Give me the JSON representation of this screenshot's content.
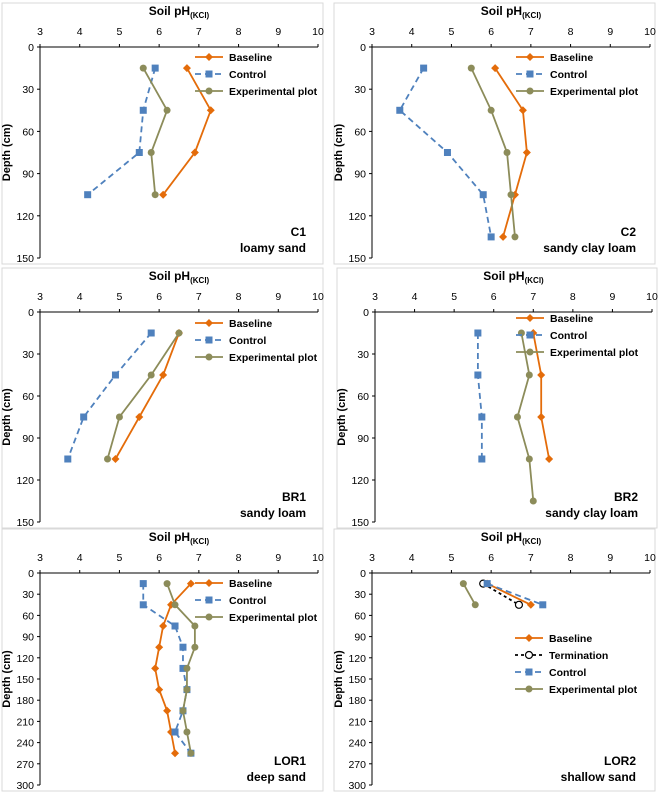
{
  "legend_labels": {
    "baseline": "Baseline",
    "termination": "Termination",
    "control": "Control",
    "experimental": "Experimental plot"
  },
  "colors": {
    "baseline": "#E46C0A",
    "control": "#4F81BD",
    "experimental": "#8C8C5A",
    "termination": "#000000"
  },
  "chart_data": [
    {
      "type": "line",
      "id": "C1",
      "title": "Soil pH(KCl)",
      "xlabel": "Soil pH",
      "xlabel_sub": "(KCl)",
      "ylabel": "Depth (cm)",
      "panel_label": "C1",
      "soil_type": "loamy sand",
      "xlim": [
        3,
        10
      ],
      "ylim": [
        0,
        150
      ],
      "xticks": [
        3,
        4,
        5,
        6,
        7,
        8,
        9,
        10
      ],
      "yticks": [
        0,
        30,
        60,
        90,
        120,
        150
      ],
      "series": [
        {
          "name": "Baseline",
          "key": "baseline",
          "depth": [
            15,
            45,
            75,
            105
          ],
          "values": [
            6.7,
            7.3,
            6.9,
            6.1
          ]
        },
        {
          "name": "Control",
          "key": "control",
          "depth": [
            15,
            45,
            75,
            105
          ],
          "values": [
            5.9,
            5.6,
            5.5,
            4.2
          ]
        },
        {
          "name": "Experimental plot",
          "key": "experimental",
          "depth": [
            15,
            45,
            75,
            105
          ],
          "values": [
            5.6,
            6.2,
            5.8,
            5.9
          ]
        }
      ]
    },
    {
      "type": "line",
      "id": "C2",
      "title": "Soil pH(KCl)",
      "xlabel": "Soil pH",
      "xlabel_sub": "(KCl)",
      "ylabel": "Depth (cm)",
      "panel_label": "C2",
      "soil_type": "sandy clay loam",
      "xlim": [
        3,
        10
      ],
      "ylim": [
        0,
        150
      ],
      "xticks": [
        3,
        4,
        5,
        6,
        7,
        8,
        9,
        10
      ],
      "yticks": [
        0,
        30,
        60,
        90,
        120,
        150
      ],
      "series": [
        {
          "name": "Baseline",
          "key": "baseline",
          "depth": [
            15,
            45,
            75,
            105,
            135
          ],
          "values": [
            6.1,
            6.8,
            6.9,
            6.6,
            6.3
          ]
        },
        {
          "name": "Control",
          "key": "control",
          "depth": [
            15,
            45,
            75,
            105,
            135
          ],
          "values": [
            4.3,
            3.7,
            4.9,
            5.8,
            6.0
          ]
        },
        {
          "name": "Experimental plot",
          "key": "experimental",
          "depth": [
            15,
            45,
            75,
            105,
            135
          ],
          "values": [
            5.5,
            6.0,
            6.4,
            6.5,
            6.6
          ]
        }
      ]
    },
    {
      "type": "line",
      "id": "BR1",
      "title": "Soil pH(KCl)",
      "xlabel": "Soil pH",
      "xlabel_sub": "(KCl)",
      "ylabel": "Depth (cm)",
      "panel_label": "BR1",
      "soil_type": "sandy loam",
      "xlim": [
        3,
        10
      ],
      "ylim": [
        0,
        150
      ],
      "xticks": [
        3,
        4,
        5,
        6,
        7,
        8,
        9,
        10
      ],
      "yticks": [
        0,
        30,
        60,
        90,
        120,
        150
      ],
      "series": [
        {
          "name": "Baseline",
          "key": "baseline",
          "depth": [
            15,
            45,
            75,
            105
          ],
          "values": [
            6.5,
            6.1,
            5.5,
            4.9
          ]
        },
        {
          "name": "Control",
          "key": "control",
          "depth": [
            15,
            45,
            75,
            105
          ],
          "values": [
            5.8,
            4.9,
            4.1,
            3.7
          ]
        },
        {
          "name": "Experimental plot",
          "key": "experimental",
          "depth": [
            15,
            45,
            75,
            105
          ],
          "values": [
            6.5,
            5.8,
            5.0,
            4.7
          ]
        }
      ]
    },
    {
      "type": "line",
      "id": "BR2",
      "title": "Soil pH(KCl)",
      "xlabel": "Soil pH",
      "xlabel_sub": "(KCl)",
      "ylabel": "Depth (cm)",
      "panel_label": "BR2",
      "soil_type": "sandy clay loam",
      "xlim": [
        3,
        10
      ],
      "ylim": [
        0,
        150
      ],
      "xticks": [
        3,
        4,
        5,
        6,
        7,
        8,
        9,
        10
      ],
      "yticks": [
        0,
        30,
        60,
        90,
        120,
        150
      ],
      "series": [
        {
          "name": "Baseline",
          "key": "baseline",
          "depth": [
            15,
            45,
            75,
            105
          ],
          "values": [
            7.0,
            7.2,
            7.2,
            7.4
          ]
        },
        {
          "name": "Control",
          "key": "control",
          "depth": [
            15,
            45,
            75,
            105
          ],
          "values": [
            5.6,
            5.6,
            5.7,
            5.7
          ]
        },
        {
          "name": "Experimental plot",
          "key": "experimental",
          "depth": [
            15,
            45,
            75,
            105,
            135
          ],
          "values": [
            6.7,
            6.9,
            6.6,
            6.9,
            7.0
          ]
        }
      ]
    },
    {
      "type": "line",
      "id": "LOR1",
      "title": "Soil pH(KCl)",
      "xlabel": "Soil pH",
      "xlabel_sub": "(KCl)",
      "ylabel": "Depth (cm)",
      "panel_label": "LOR1",
      "soil_type": "deep sand",
      "xlim": [
        3,
        10
      ],
      "ylim": [
        0,
        300
      ],
      "xticks": [
        3,
        4,
        5,
        6,
        7,
        8,
        9,
        10
      ],
      "yticks": [
        0,
        30,
        60,
        90,
        120,
        150,
        180,
        210,
        240,
        270,
        300
      ],
      "series": [
        {
          "name": "Baseline",
          "key": "baseline",
          "depth": [
            15,
            45,
            75,
            105,
            135,
            165,
            195,
            225,
            255
          ],
          "values": [
            6.8,
            6.3,
            6.1,
            6.0,
            5.9,
            6.0,
            6.2,
            6.3,
            6.4
          ]
        },
        {
          "name": "Control",
          "key": "control",
          "depth": [
            15,
            45,
            75,
            105,
            135,
            165,
            195,
            225,
            255
          ],
          "values": [
            5.6,
            5.6,
            6.4,
            6.6,
            6.6,
            6.7,
            6.6,
            6.4,
            6.8
          ]
        },
        {
          "name": "Experimental plot",
          "key": "experimental",
          "depth": [
            15,
            45,
            75,
            105,
            135,
            165,
            195,
            225,
            255
          ],
          "values": [
            6.2,
            6.4,
            6.9,
            6.9,
            6.7,
            6.7,
            6.6,
            6.7,
            6.8
          ]
        }
      ]
    },
    {
      "type": "line",
      "id": "LOR2",
      "title": "Soil pH(KCl)",
      "xlabel": "Soil pH",
      "xlabel_sub": "(KCl)",
      "ylabel": "Depth (cm)",
      "panel_label": "LOR2",
      "soil_type": "shallow sand",
      "xlim": [
        3,
        10
      ],
      "ylim": [
        0,
        300
      ],
      "xticks": [
        3,
        4,
        5,
        6,
        7,
        8,
        9,
        10
      ],
      "yticks": [
        0,
        30,
        60,
        90,
        120,
        150,
        180,
        210,
        240,
        270,
        300
      ],
      "series": [
        {
          "name": "Baseline",
          "key": "baseline",
          "depth": [
            15,
            45
          ],
          "values": [
            5.9,
            7.0
          ]
        },
        {
          "name": "Termination",
          "key": "termination",
          "depth": [
            15,
            45
          ],
          "values": [
            5.8,
            6.7
          ]
        },
        {
          "name": "Control",
          "key": "control",
          "depth": [
            15,
            45
          ],
          "values": [
            5.9,
            7.3
          ]
        },
        {
          "name": "Experimental plot",
          "key": "experimental",
          "depth": [
            15,
            45
          ],
          "values": [
            5.3,
            5.6
          ]
        }
      ]
    }
  ]
}
